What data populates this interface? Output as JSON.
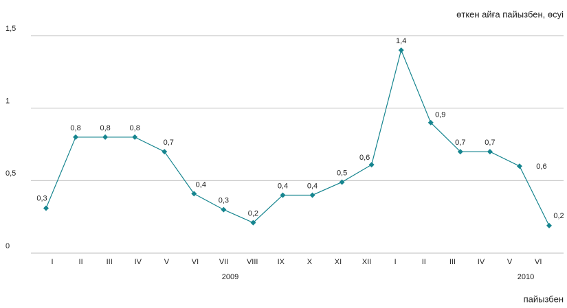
{
  "chart_data": {
    "type": "line",
    "title": "өткен айға пайызбен, өсуі",
    "footnote": "пайызбен",
    "year_labels": [
      "2009",
      "2010"
    ],
    "categories": [
      "I",
      "II",
      "III",
      "IV",
      "V",
      "VI",
      "VII",
      "VIII",
      "IX",
      "X",
      "XI",
      "XII",
      "I",
      "II",
      "III",
      "IV",
      "V",
      "VI"
    ],
    "series": [
      {
        "color": "#16858f",
        "values": [
          0.31,
          0.8,
          0.8,
          0.8,
          0.7,
          0.41,
          0.3,
          0.21,
          0.4,
          0.4,
          0.49,
          0.61,
          1.4,
          0.9,
          0.7,
          0.7,
          0.6,
          0.19
        ],
        "value_labels": [
          "0,3",
          "0,8",
          "0,8",
          "0,8",
          "0,7",
          "0,4",
          "0,3",
          "0,2",
          "0,4",
          "0,4",
          "0,5",
          "0,6",
          "1,4",
          "0,9",
          "0,7",
          "0,7",
          "0,6",
          "0,2"
        ]
      }
    ],
    "ylim": [
      0,
      1.5
    ],
    "yticks": [
      0,
      {
        "value": 0.5,
        "label": "0,5"
      },
      1,
      {
        "value": 1.5,
        "label": "1,5"
      }
    ],
    "grid": true
  }
}
